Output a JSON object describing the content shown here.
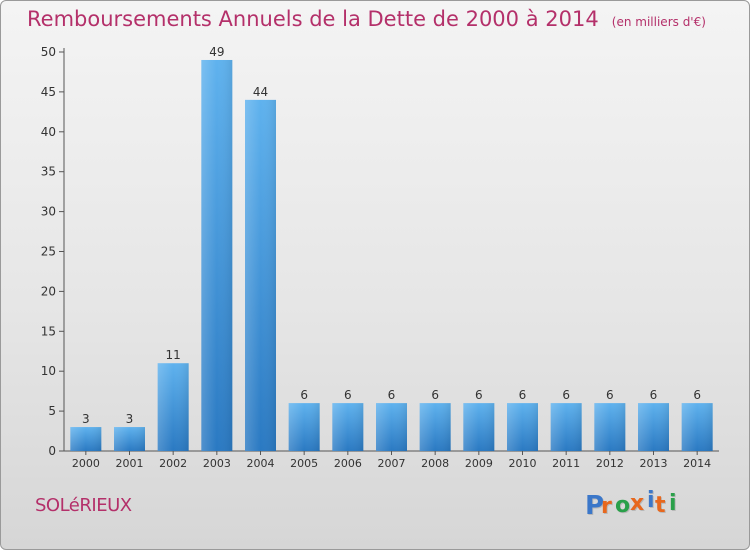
{
  "chart_data": {
    "type": "bar",
    "title": "Remboursements Annuels de la Dette de 2000 à 2014",
    "subtitle": "(en milliers d'€)",
    "categories": [
      "2000",
      "2001",
      "2002",
      "2003",
      "2004",
      "2005",
      "2006",
      "2007",
      "2008",
      "2009",
      "2010",
      "2011",
      "2012",
      "2013",
      "2014"
    ],
    "values": [
      3,
      3,
      11,
      49,
      44,
      6,
      6,
      6,
      6,
      6,
      6,
      6,
      6,
      6,
      6
    ],
    "ylim": [
      0,
      50
    ],
    "yticks": [
      0,
      5,
      10,
      15,
      20,
      25,
      30,
      35,
      40,
      45,
      50
    ],
    "grid": false,
    "legend": "none",
    "bar_color": "#3d8fd8"
  },
  "footer": {
    "place_name": "SOLéRIEUX",
    "logo_text": "Proxiti"
  },
  "colors": {
    "title": "#b4306a",
    "logo_letters": [
      "#3b77c9",
      "#e7681e",
      "#2aa04a",
      "#e7681e",
      "#3b77c9",
      "#e7681e",
      "#2aa04a"
    ]
  }
}
